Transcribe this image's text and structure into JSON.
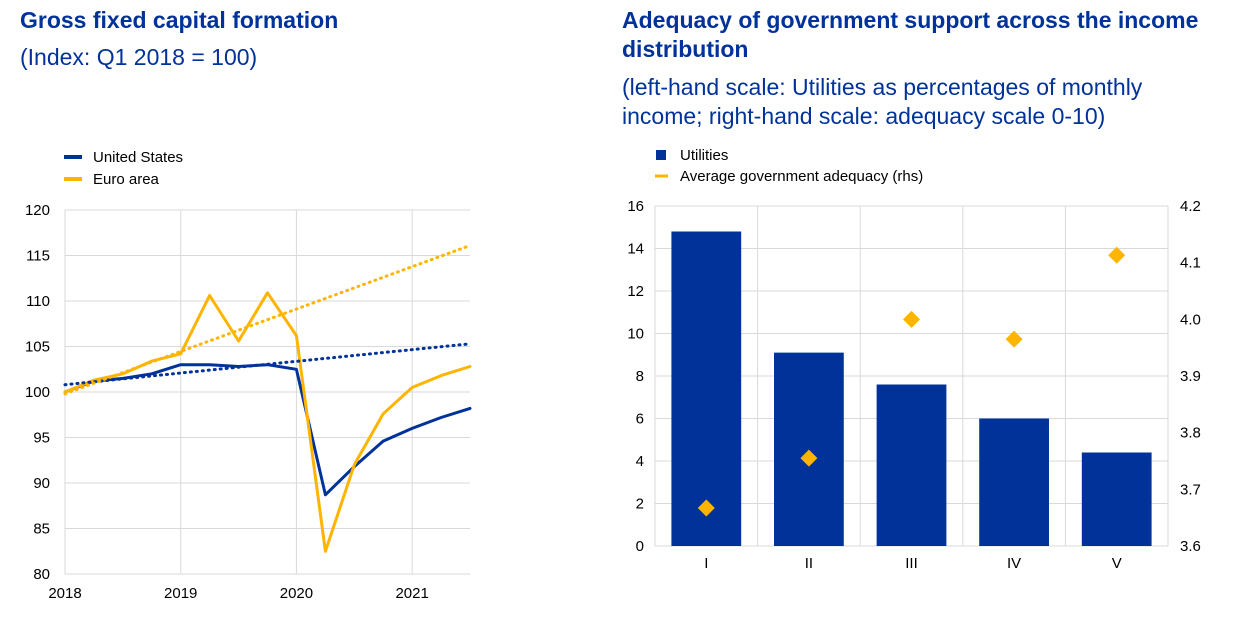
{
  "left_panel": {
    "title": "Gross fixed capital formation",
    "subtitle": "(Index: Q1 2018 = 100)"
  },
  "right_panel": {
    "title": "Adequacy of government support across the income distribution",
    "subtitle": "(left-hand scale: Utilities as percentages of monthly income; right-hand scale: adequacy scale 0-10)"
  },
  "colors": {
    "us": "#003299",
    "euro": "#ffb400",
    "bars": "#003299",
    "diamonds": "#ffb400",
    "grid": "#d9d9d9",
    "title": "#003299"
  },
  "chart_data": [
    {
      "type": "line",
      "title": "Gross fixed capital formation",
      "subtitle": "(Index: Q1 2018 = 100)",
      "xlim": [
        2018.0,
        2021.5
      ],
      "ylim": [
        80,
        120
      ],
      "yticks": [
        "80",
        "85",
        "90",
        "95",
        "100",
        "105",
        "110",
        "115",
        "120"
      ],
      "xticks": [
        "2018",
        "2019",
        "2020",
        "2021"
      ],
      "legend_position": "top-left",
      "grid": true,
      "series": [
        {
          "name": "United States",
          "color": "#003299",
          "style": "solid",
          "x": [
            2018.0,
            2018.25,
            2018.5,
            2018.75,
            2019.0,
            2019.25,
            2019.5,
            2019.75,
            2020.0,
            2020.25,
            2020.5,
            2020.75,
            2021.0,
            2021.25,
            2021.5
          ],
          "y": [
            100.0,
            101.2,
            101.5,
            102.0,
            103.0,
            103.0,
            102.8,
            103.0,
            102.5,
            88.7,
            91.8,
            94.6,
            96.0,
            97.2,
            98.2
          ]
        },
        {
          "name": "Euro area",
          "color": "#ffb400",
          "style": "solid",
          "x": [
            2018.0,
            2018.25,
            2018.5,
            2018.75,
            2019.0,
            2019.25,
            2019.5,
            2019.75,
            2020.0,
            2020.25,
            2020.5,
            2020.75,
            2021.0,
            2021.25,
            2021.5
          ],
          "y": [
            100.0,
            101.3,
            102.0,
            103.4,
            104.2,
            110.6,
            105.6,
            110.9,
            106.2,
            82.5,
            92.0,
            97.6,
            100.5,
            101.8,
            102.8
          ]
        },
        {
          "color": "#003299",
          "style": "dotted",
          "x": [
            2018.0,
            2021.5
          ],
          "y": [
            100.8,
            105.3
          ]
        },
        {
          "color": "#ffb400",
          "style": "dotted",
          "x": [
            2018.0,
            2021.5
          ],
          "y": [
            99.8,
            116.1
          ]
        }
      ]
    },
    {
      "type": "bar",
      "title": "Adequacy of government support across the income distribution",
      "subtitle": "(left-hand scale: Utilities as percentages of monthly income; right-hand scale: adequacy scale 0-10)",
      "categories": [
        "I",
        "II",
        "III",
        "IV",
        "V"
      ],
      "ylim": [
        0,
        16
      ],
      "yticks": [
        "0",
        "2",
        "4",
        "6",
        "8",
        "10",
        "12",
        "14",
        "16"
      ],
      "y2lim": [
        3.6,
        4.2
      ],
      "y2ticks": [
        "3.6",
        "3.7",
        "3.8",
        "3.9",
        "4.0",
        "4.1",
        "4.2"
      ],
      "legend_position": "top-left",
      "grid": true,
      "series": [
        {
          "name": "Utilities",
          "axis": "left",
          "mark": "bar",
          "color": "#003299",
          "values": [
            14.8,
            9.1,
            7.6,
            6.0,
            4.4
          ]
        },
        {
          "name": "Average government adequacy (rhs)",
          "axis": "right",
          "mark": "diamond",
          "color": "#ffb400",
          "values": [
            3.667,
            3.755,
            4.0,
            3.965,
            4.113
          ]
        }
      ]
    }
  ]
}
